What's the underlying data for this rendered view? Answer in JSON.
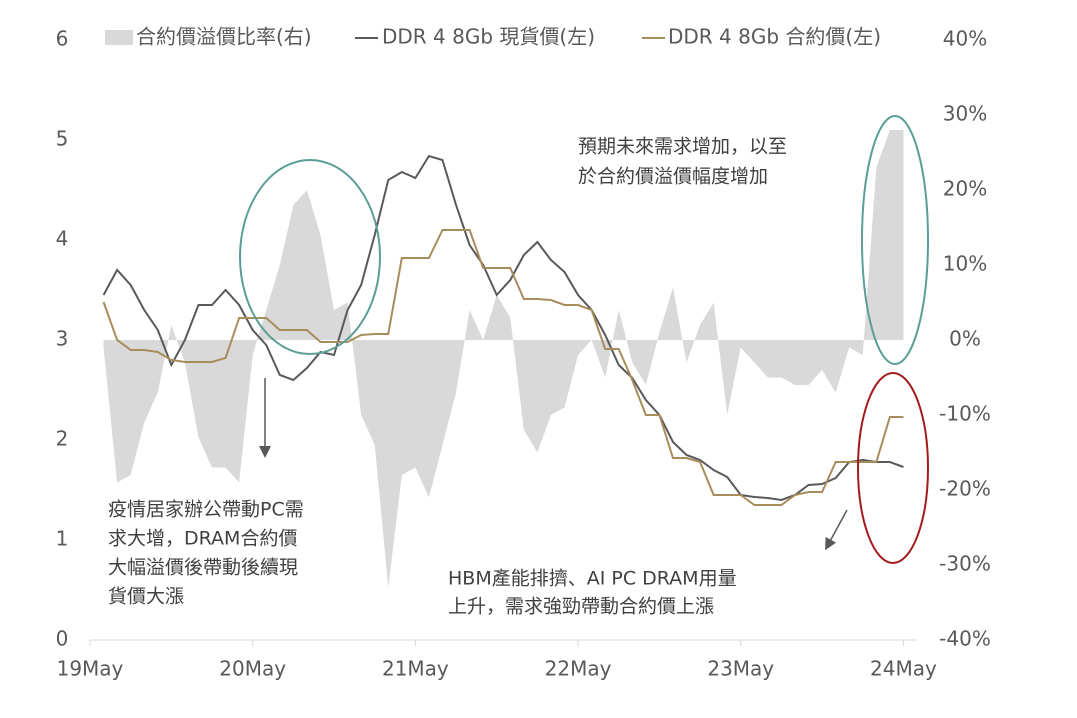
{
  "chart_data": {
    "type": "combo",
    "x": [
      "2019-06",
      "2019-07",
      "2019-08",
      "2019-09",
      "2019-10",
      "2019-11",
      "2019-12",
      "2020-01",
      "2020-02",
      "2020-03",
      "2020-04",
      "2020-05",
      "2020-06",
      "2020-07",
      "2020-08",
      "2020-09",
      "2020-10",
      "2020-11",
      "2020-12",
      "2021-01",
      "2021-02",
      "2021-03",
      "2021-04",
      "2021-05",
      "2021-06",
      "2021-07",
      "2021-08",
      "2021-09",
      "2021-10",
      "2021-11",
      "2021-12",
      "2022-01",
      "2022-02",
      "2022-03",
      "2022-04",
      "2022-05",
      "2022-06",
      "2022-07",
      "2022-08",
      "2022-09",
      "2022-10",
      "2022-11",
      "2022-12",
      "2023-01",
      "2023-02",
      "2023-03",
      "2023-04",
      "2023-05",
      "2023-06",
      "2023-07",
      "2023-08",
      "2023-09",
      "2023-10",
      "2023-11",
      "2023-12",
      "2024-01",
      "2024-02",
      "2024-03",
      "2024-04",
      "2024-05"
    ],
    "series": [
      {
        "name": "合約價溢價比率(右)",
        "type": "area",
        "axis": "y2",
        "color": "#d9d9d9",
        "values": [
          -1,
          -19,
          -18,
          -11,
          -7,
          2,
          -3,
          -13,
          -17,
          -17,
          -19,
          -2,
          4,
          10,
          18,
          20,
          14,
          4,
          5,
          -10,
          -14,
          -33,
          -18,
          -17,
          -21,
          -14,
          -7,
          4,
          0,
          6,
          3,
          -12,
          -15,
          -10,
          -9,
          -2,
          0,
          -5,
          4,
          -3,
          -6,
          1,
          7,
          -3,
          2,
          5,
          -10,
          -1,
          -3,
          -5,
          -5,
          -6,
          -6,
          -4,
          -7,
          -1,
          -2,
          23,
          28,
          28
        ]
      },
      {
        "name": "DDR 4 8Gb 現貨價(左)",
        "type": "line",
        "color": "#595959",
        "values": [
          3.45,
          3.7,
          3.55,
          3.3,
          3.1,
          2.75,
          3.0,
          3.35,
          3.35,
          3.5,
          3.35,
          3.1,
          2.95,
          2.65,
          2.6,
          2.72,
          2.88,
          2.85,
          3.3,
          3.55,
          4.05,
          4.6,
          4.68,
          4.62,
          4.84,
          4.8,
          4.35,
          3.95,
          3.75,
          3.45,
          3.6,
          3.85,
          3.98,
          3.8,
          3.68,
          3.45,
          3.3,
          3.05,
          2.75,
          2.62,
          2.4,
          2.25,
          1.98,
          1.85,
          1.8,
          1.7,
          1.63,
          1.45,
          1.43,
          1.42,
          1.4,
          1.45,
          1.55,
          1.56,
          1.62,
          1.78,
          1.8,
          1.78,
          1.78,
          1.73
        ]
      },
      {
        "name": "DDR 4 8Gb 合約價(左)",
        "type": "line",
        "color": "#a88c5c",
        "values": [
          3.38,
          3.0,
          2.9,
          2.9,
          2.88,
          2.8,
          2.78,
          2.78,
          2.78,
          2.82,
          3.22,
          3.22,
          3.22,
          3.1,
          3.1,
          3.1,
          2.98,
          2.98,
          2.98,
          3.05,
          3.06,
          3.06,
          3.82,
          3.82,
          3.82,
          4.1,
          4.1,
          4.1,
          3.72,
          3.72,
          3.72,
          3.41,
          3.41,
          3.4,
          3.35,
          3.35,
          3.3,
          2.91,
          2.91,
          2.6,
          2.25,
          2.25,
          1.82,
          1.82,
          1.78,
          1.45,
          1.45,
          1.45,
          1.35,
          1.35,
          1.35,
          1.45,
          1.48,
          1.48,
          1.78,
          1.78,
          1.78,
          1.78,
          2.23,
          2.23
        ]
      }
    ],
    "xlim": [
      "2019-05",
      "2024-06"
    ],
    "xticks": [
      {
        "value": "2019-05",
        "label": "19May"
      },
      {
        "value": "2020-05",
        "label": "20May"
      },
      {
        "value": "2021-05",
        "label": "21May"
      },
      {
        "value": "2022-05",
        "label": "22May"
      },
      {
        "value": "2023-05",
        "label": "23May"
      },
      {
        "value": "2024-05",
        "label": "24May"
      }
    ],
    "ylim": [
      0,
      6
    ],
    "yticks": [
      0,
      1,
      2,
      3,
      4,
      5,
      6
    ],
    "y2lim": [
      -40,
      40
    ],
    "y2ticks": [
      {
        "value": -40,
        "label": "-40%"
      },
      {
        "value": -30,
        "label": "-30%"
      },
      {
        "value": -20,
        "label": "-20%"
      },
      {
        "value": -10,
        "label": "-10%"
      },
      {
        "value": 0,
        "label": "0%"
      },
      {
        "value": 10,
        "label": "10%"
      },
      {
        "value": 20,
        "label": "20%"
      },
      {
        "value": 30,
        "label": "30%"
      },
      {
        "value": 40,
        "label": "40%"
      }
    ],
    "legend": "top",
    "annotations": [
      {
        "lines": [
          "預期未來需求增加，以至",
          "於合約價溢價幅度增加"
        ]
      },
      {
        "lines": [
          "疫情居家辦公帶動PC需",
          "求大增，DRAM合約價",
          "大幅溢價後帶動後續現",
          "貨價大漲"
        ]
      },
      {
        "lines": [
          "HBM產能排擠、AI PC DRAM用量",
          "上升，需求強勁帶動合約價上漲"
        ]
      }
    ]
  }
}
